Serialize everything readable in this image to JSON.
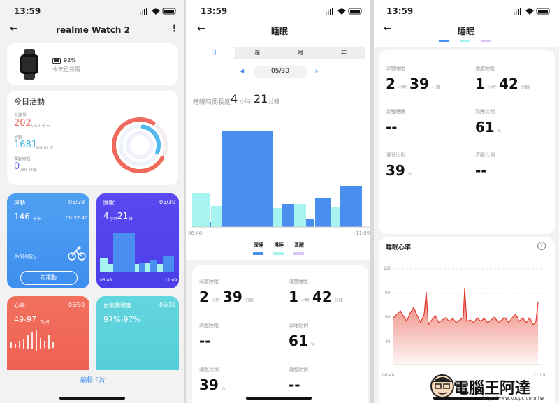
{
  "screens": [
    {
      "status_time": "13:59",
      "title": "realme Watch 2",
      "battery": "92%",
      "charge_note": "今天已充電",
      "activity": {
        "title": "今日活動",
        "items": [
          {
            "label": "卡路里",
            "value": "202",
            "goal": "/350 千卡"
          },
          {
            "label": "步數",
            "value": "1681",
            "goal": "/6000 步"
          },
          {
            "label": "運動時長",
            "value": "0",
            "goal": "/30 分鐘"
          }
        ]
      },
      "cards": [
        {
          "title": "運動",
          "date": "05/29",
          "value": "146",
          "unit": "千卡",
          "duration": "00:37:40",
          "activity": "戶外騎行",
          "button": "去運動"
        },
        {
          "title": "睡眠",
          "date": "05/30",
          "hours": "4",
          "hours_unit": "小時",
          "minutes": "21",
          "minutes_unit": "分",
          "start": "06:48",
          "end": "11:09"
        },
        {
          "title": "心率",
          "date": "05/30",
          "value": "49-97",
          "unit": "次/分"
        },
        {
          "title": "血氧飽和度",
          "date": "05/30",
          "value": "97%-97%"
        }
      ],
      "edit_button": "編輯卡片"
    },
    {
      "status_time": "13:59",
      "title": "睡眠",
      "tabs": [
        "日",
        "週",
        "月",
        "年"
      ],
      "date": "05/30",
      "duration": {
        "label": "睡眠時間長度",
        "hours": "4",
        "hours_unit": "小時",
        "minutes": "21",
        "minutes_unit": "分鐘"
      },
      "chart": {
        "start": "06:48",
        "end": "11:09"
      },
      "legend": [
        "深睡",
        "淺睡",
        "清醒"
      ],
      "stats": [
        {
          "label": "深度睡眠",
          "value": [
            "2",
            "小時",
            "39",
            "分鐘"
          ]
        },
        {
          "label": "淺度睡眠",
          "value": [
            "1",
            "小時",
            "42",
            "分鐘"
          ]
        },
        {
          "label": "清醒睡眠",
          "value": [
            "--"
          ]
        },
        {
          "label": "深睡比例",
          "value": [
            "61",
            "%"
          ]
        },
        {
          "label": "淺眠比例",
          "value": [
            "39",
            "%"
          ]
        },
        {
          "label": "清醒比例",
          "value": [
            "--"
          ]
        }
      ]
    },
    {
      "status_time": "13:59",
      "title": "睡眠",
      "stats": [
        {
          "label": "深度睡眠",
          "value": [
            "2",
            "小時",
            "39",
            "分鐘"
          ]
        },
        {
          "label": "淺度睡眠",
          "value": [
            "1",
            "小時",
            "42",
            "分鐘"
          ]
        },
        {
          "label": "清醒睡眠",
          "value": [
            "--"
          ]
        },
        {
          "label": "深睡比例",
          "value": [
            "61",
            "%"
          ]
        },
        {
          "label": "淺眠比例",
          "value": [
            "39",
            "%"
          ]
        },
        {
          "label": "清醒比例",
          "value": [
            "--"
          ]
        }
      ],
      "heart": {
        "title": "睡眠心率",
        "help": "?",
        "yticks": [
          "120",
          "90",
          "60",
          "30"
        ],
        "start": "06:48",
        "end": "11:09"
      }
    }
  ],
  "watermark": {
    "name": "電腦王阿達",
    "url": "http://www.kocpc.com.tw"
  }
}
